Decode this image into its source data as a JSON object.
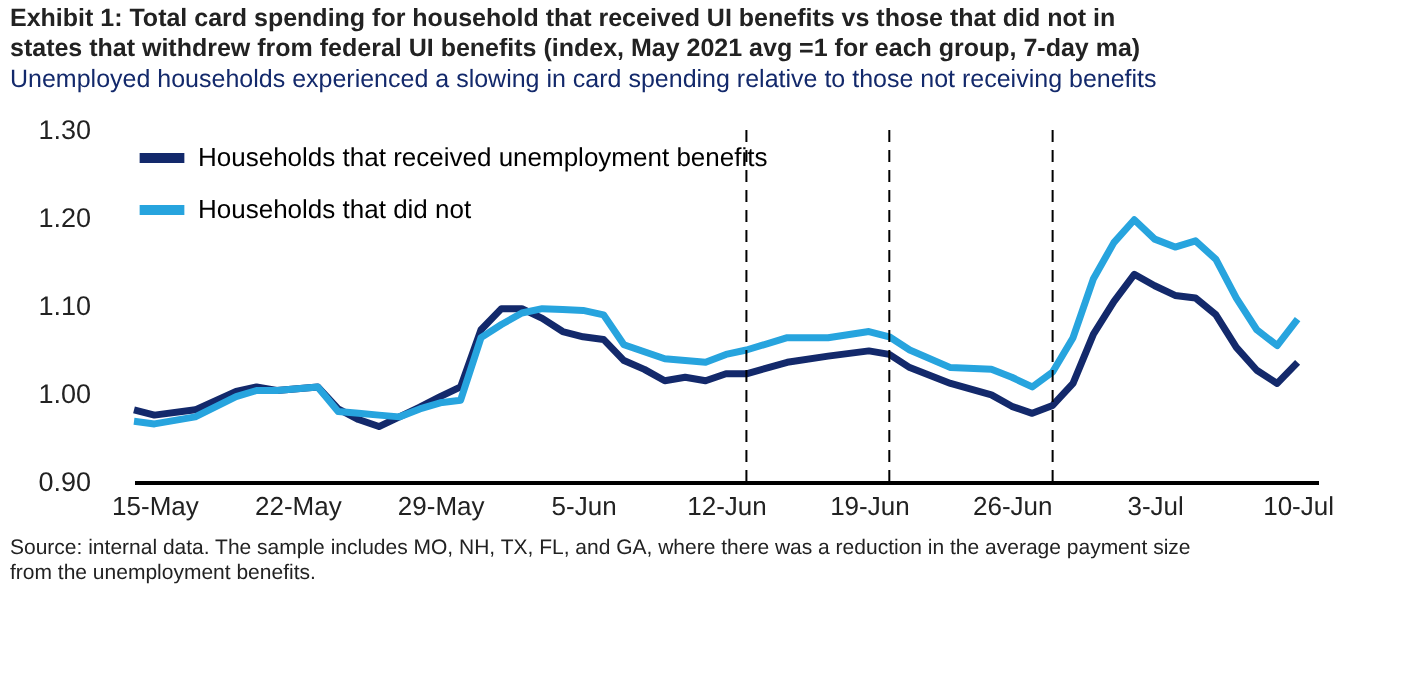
{
  "chart_data": {
    "type": "line",
    "title": "Exhibit 1: Total card spending for household that received UI benefits vs those that did not in states that withdrew from federal UI benefits (index, May 2021 avg =1 for each group, 7-day  ma)",
    "subtitle": "Unemployed households experienced a slowing in card spending relative to those not receiving benefits",
    "annotations": [
      "Source: internal data. The sample includes MO, NH, TX, FL, and GA, where there was a reduction in the average payment size from the unemployment benefits."
    ],
    "x": [
      "2021-05-14",
      "2021-05-15",
      "2021-05-17",
      "2021-05-19",
      "2021-05-20",
      "2021-05-21",
      "2021-05-23",
      "2021-05-24",
      "2021-05-25",
      "2021-05-26",
      "2021-05-27",
      "2021-05-28",
      "2021-05-29",
      "2021-05-30",
      "2021-05-31",
      "2021-06-01",
      "2021-06-02",
      "2021-06-03",
      "2021-06-04",
      "2021-06-05",
      "2021-06-06",
      "2021-06-07",
      "2021-06-08",
      "2021-06-09",
      "2021-06-10",
      "2021-06-11",
      "2021-06-12",
      "2021-06-13",
      "2021-06-15",
      "2021-06-17",
      "2021-06-19",
      "2021-06-20",
      "2021-06-21",
      "2021-06-23",
      "2021-06-25",
      "2021-06-26",
      "2021-06-27",
      "2021-06-28",
      "2021-06-29",
      "2021-06-30",
      "2021-07-01",
      "2021-07-02",
      "2021-07-03",
      "2021-07-04",
      "2021-07-05",
      "2021-07-06",
      "2021-07-07",
      "2021-07-08",
      "2021-07-09",
      "2021-07-10"
    ],
    "series": [
      {
        "name": "Households that received unemployment benefits",
        "color": "#13296b",
        "values": [
          0.982,
          0.976,
          0.982,
          1.003,
          1.008,
          1.004,
          1.008,
          0.983,
          0.971,
          0.963,
          0.974,
          0.985,
          0.997,
          1.008,
          1.073,
          1.097,
          1.097,
          1.086,
          1.071,
          1.065,
          1.062,
          1.038,
          1.028,
          1.015,
          1.019,
          1.015,
          1.023,
          1.023,
          1.036,
          1.043,
          1.049,
          1.045,
          1.03,
          1.012,
          0.999,
          0.986,
          0.978,
          0.987,
          1.012,
          1.068,
          1.105,
          1.136,
          1.123,
          1.112,
          1.109,
          1.09,
          1.053,
          1.027,
          1.012,
          1.036
        ]
      },
      {
        "name": "Households that did not",
        "color": "#27a4de",
        "values": [
          0.969,
          0.966,
          0.974,
          0.997,
          1.004,
          1.004,
          1.008,
          0.98,
          0.978,
          0.976,
          0.974,
          0.983,
          0.99,
          0.993,
          1.064,
          1.079,
          1.092,
          1.097,
          1.096,
          1.095,
          1.09,
          1.056,
          1.048,
          1.04,
          1.038,
          1.036,
          1.045,
          1.05,
          1.064,
          1.064,
          1.071,
          1.065,
          1.05,
          1.03,
          1.028,
          1.019,
          1.008,
          1.025,
          1.064,
          1.131,
          1.172,
          1.198,
          1.176,
          1.167,
          1.174,
          1.153,
          1.109,
          1.073,
          1.055,
          1.085
        ]
      }
    ],
    "xlim": [
      "2021-05-14",
      "2021-07-11"
    ],
    "xticks": [
      {
        "value": "2021-05-15",
        "label": "15-May"
      },
      {
        "value": "2021-05-22",
        "label": "22-May"
      },
      {
        "value": "2021-05-29",
        "label": "29-May"
      },
      {
        "value": "2021-06-05",
        "label": "5-Jun"
      },
      {
        "value": "2021-06-12",
        "label": "12-Jun"
      },
      {
        "value": "2021-06-19",
        "label": "19-Jun"
      },
      {
        "value": "2021-06-26",
        "label": "26-Jun"
      },
      {
        "value": "2021-07-03",
        "label": "3-Jul"
      },
      {
        "value": "2021-07-10",
        "label": "10-Jul"
      }
    ],
    "ylim": [
      0.9,
      1.3
    ],
    "yticks": [
      {
        "value": 0.9,
        "label": "0.90"
      },
      {
        "value": 1.0,
        "label": "1.00"
      },
      {
        "value": 1.1,
        "label": "1.10"
      },
      {
        "value": 1.2,
        "label": "1.20"
      },
      {
        "value": 1.3,
        "label": "1.30"
      }
    ],
    "ref_lines": [
      {
        "axis": "x",
        "value": "2021-06-13",
        "color": "#000000",
        "line_style": "dashed"
      },
      {
        "axis": "x",
        "value": "2021-06-20",
        "color": "#000000",
        "line_style": "dashed"
      },
      {
        "axis": "x",
        "value": "2021-06-28",
        "color": "#000000",
        "line_style": "dashed"
      }
    ],
    "grid": false,
    "legend": "top left",
    "marker": "none",
    "line_style": "solid"
  }
}
